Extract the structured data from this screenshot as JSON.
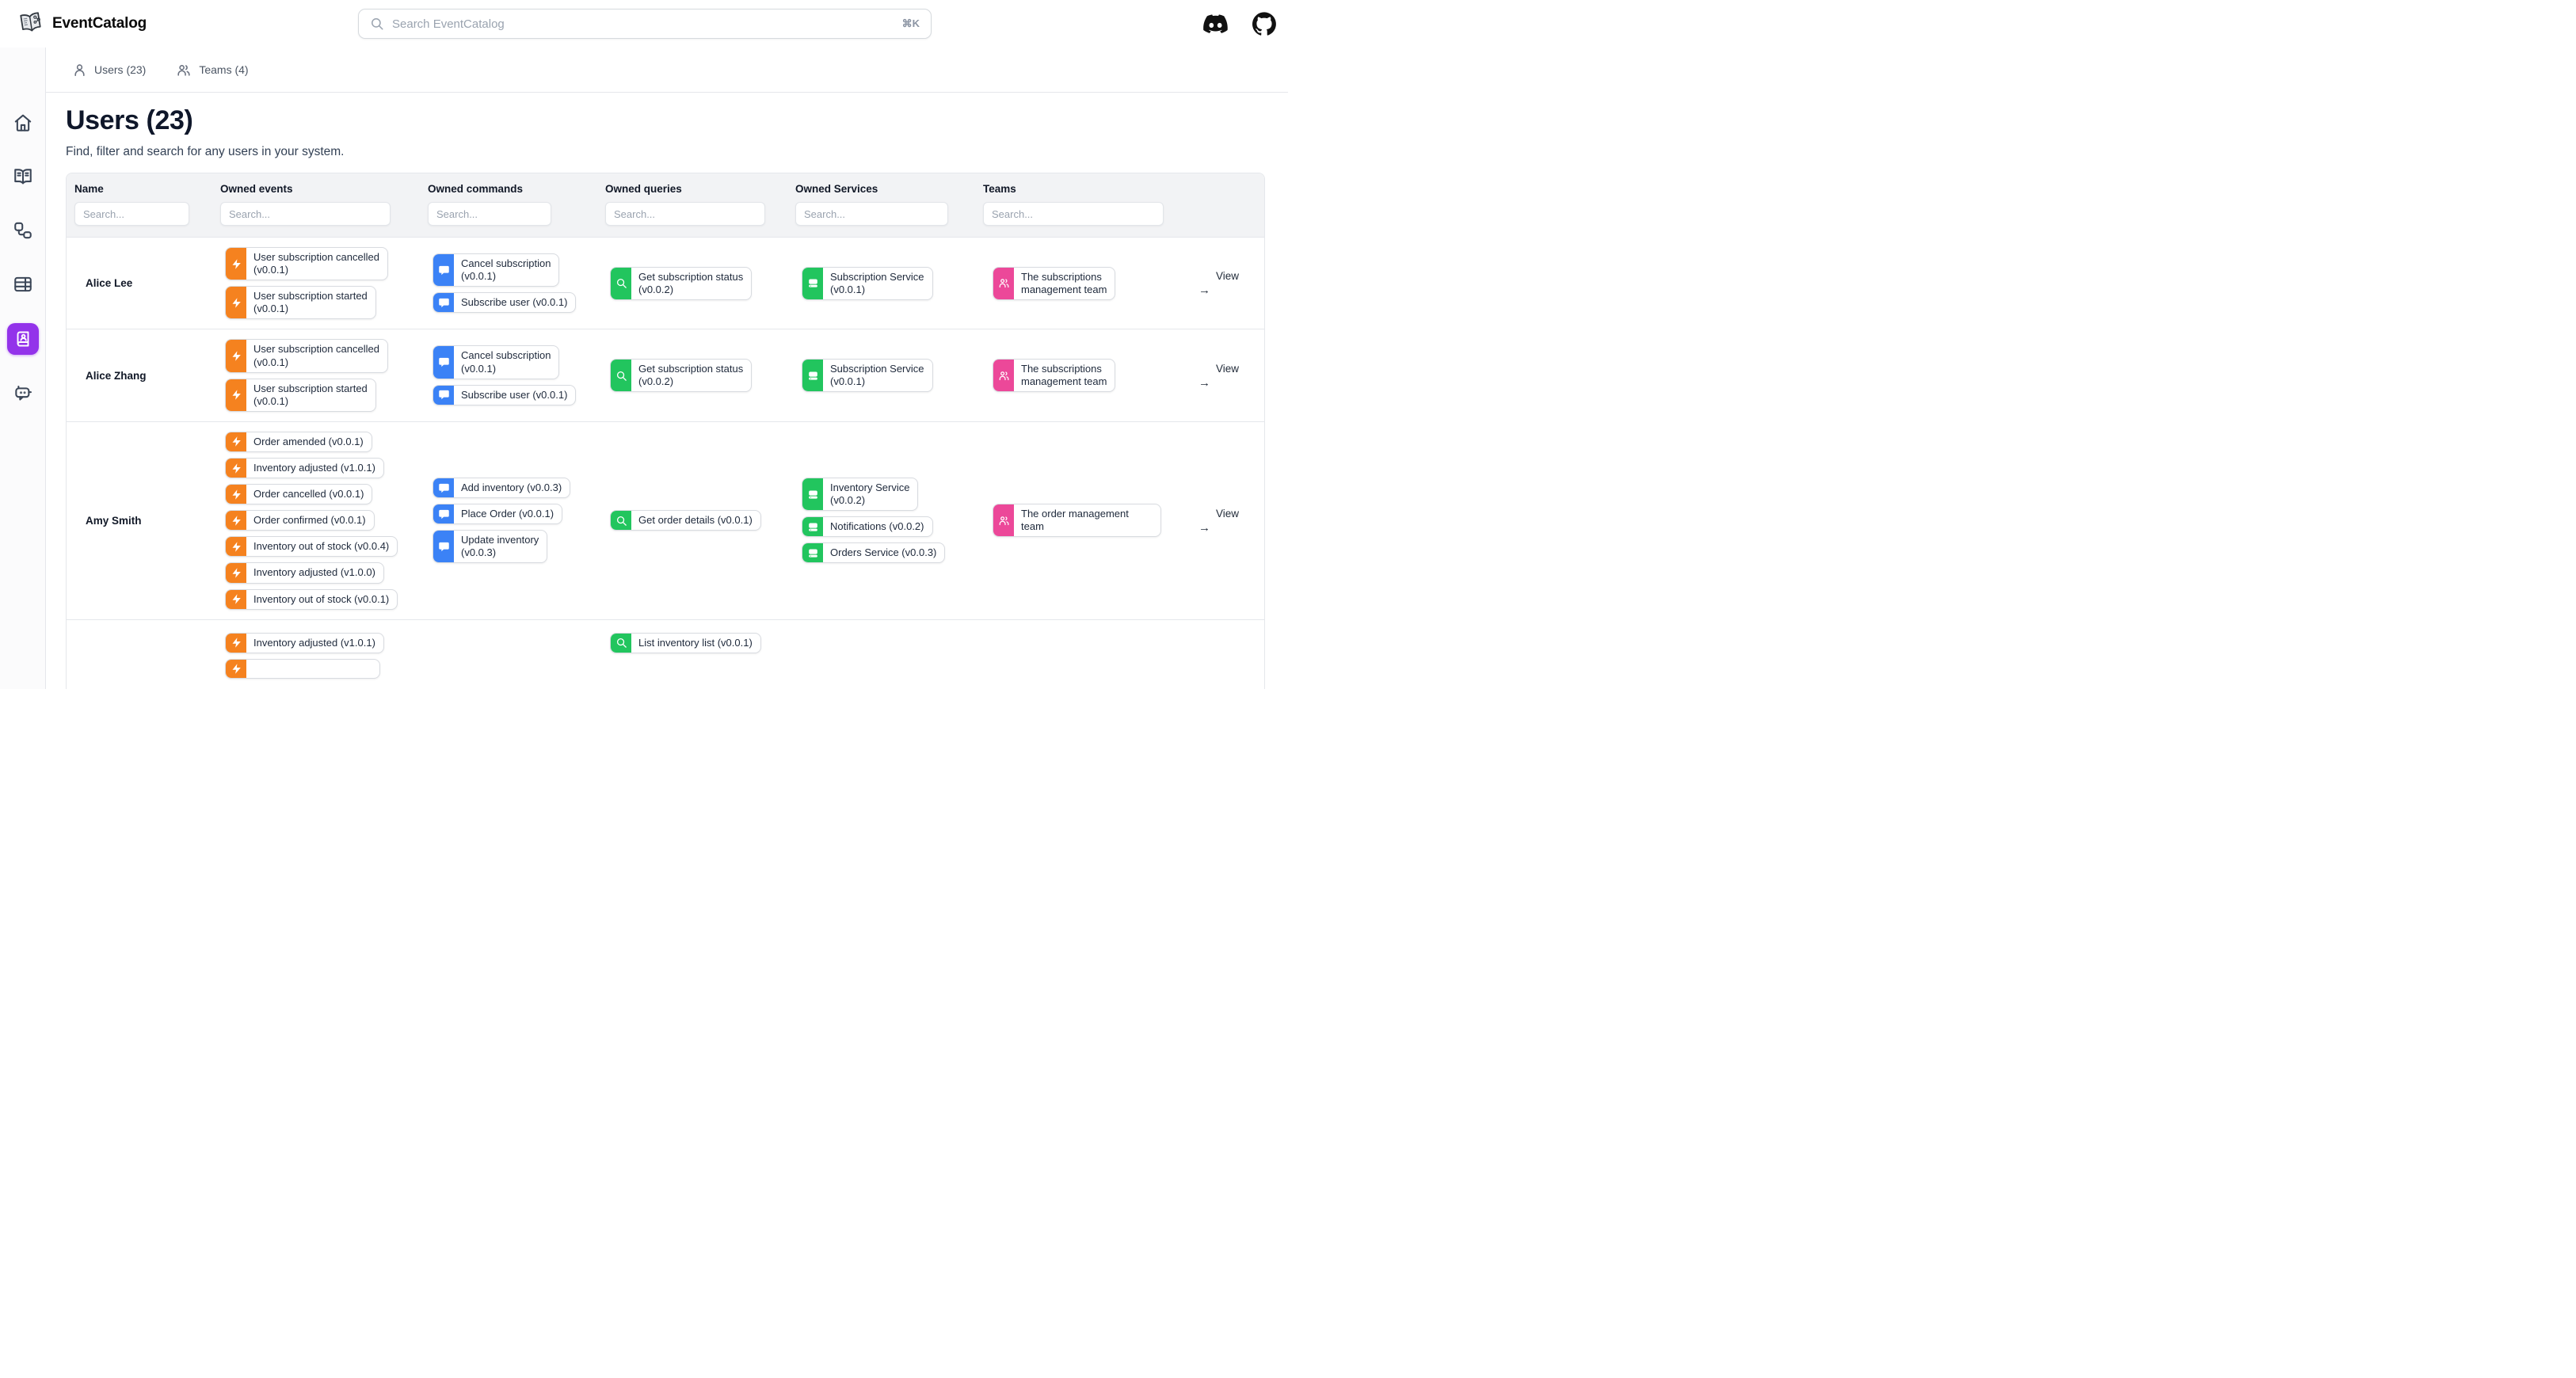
{
  "header": {
    "brand": "EventCatalog",
    "search": {
      "placeholder": "Search EventCatalog",
      "shortcut": "⌘K"
    },
    "icons": [
      "discord-icon",
      "github-icon"
    ]
  },
  "sidebar": {
    "items": [
      {
        "icon": "home-icon",
        "active": false
      },
      {
        "icon": "book-open-icon",
        "active": false
      },
      {
        "icon": "workflow-icon",
        "active": false
      },
      {
        "icon": "table-icon",
        "active": false
      },
      {
        "icon": "address-book-icon",
        "active": true
      },
      {
        "icon": "bot-icon",
        "active": false
      }
    ]
  },
  "tabs": [
    {
      "label": "Users (23)",
      "icon": "user-icon"
    },
    {
      "label": "Teams (4)",
      "icon": "users-icon"
    }
  ],
  "page": {
    "title": "Users (23)",
    "subtitle": "Find, filter and search for any users in your system."
  },
  "table": {
    "columns": [
      {
        "label": "Name",
        "placeholder": "Search..."
      },
      {
        "label": "Owned events",
        "placeholder": "Search..."
      },
      {
        "label": "Owned commands",
        "placeholder": "Search..."
      },
      {
        "label": "Owned queries",
        "placeholder": "Search..."
      },
      {
        "label": "Owned Services",
        "placeholder": "Search..."
      },
      {
        "label": "Teams",
        "placeholder": "Search..."
      }
    ],
    "view": {
      "label": "View",
      "arrow": "→"
    },
    "rows": [
      {
        "name": "Alice Lee",
        "events": [
          "User subscription cancelled\n(v0.0.1)",
          "User subscription started\n(v0.0.1)"
        ],
        "commands": [
          "Cancel subscription\n(v0.0.1)",
          "Subscribe user (v0.0.1)"
        ],
        "queries": [
          "Get subscription status\n(v0.0.2)"
        ],
        "services": [
          "Subscription Service\n(v0.0.1)"
        ],
        "teams": [
          "The subscriptions\nmanagement team"
        ]
      },
      {
        "name": "Alice Zhang",
        "events": [
          "User subscription cancelled\n(v0.0.1)",
          "User subscription started\n(v0.0.1)"
        ],
        "commands": [
          "Cancel subscription\n(v0.0.1)",
          "Subscribe user (v0.0.1)"
        ],
        "queries": [
          "Get subscription status\n(v0.0.2)"
        ],
        "services": [
          "Subscription Service\n(v0.0.1)"
        ],
        "teams": [
          "The subscriptions\nmanagement team"
        ]
      },
      {
        "name": "Amy Smith",
        "events": [
          "Order amended (v0.0.1)",
          "Inventory adjusted (v1.0.1)",
          "Order cancelled (v0.0.1)",
          "Order confirmed (v0.0.1)",
          "Inventory out of stock (v0.0.4)",
          "Inventory adjusted (v1.0.0)",
          "Inventory out of stock (v0.0.1)"
        ],
        "commands": [
          "Add inventory (v0.0.3)",
          "Place Order (v0.0.1)",
          "Update inventory\n(v0.0.3)"
        ],
        "queries": [
          "Get order details (v0.0.1)"
        ],
        "services": [
          "Inventory Service\n(v0.0.2)",
          "Notifications (v0.0.2)",
          "Orders Service (v0.0.3)"
        ],
        "teams": [
          "The order management team"
        ]
      },
      {
        "name": "",
        "events": [
          "Inventory adjusted (v1.0.1)",
          ""
        ],
        "commands": [],
        "queries": [
          "List inventory list (v0.0.1)"
        ],
        "services": [],
        "teams": []
      }
    ]
  },
  "colors": {
    "event": "#f5821f",
    "command": "#3b82f6",
    "query": "#22c55e",
    "service": "#22c55e",
    "team": "#ec4899",
    "accent": "#9333ea"
  }
}
